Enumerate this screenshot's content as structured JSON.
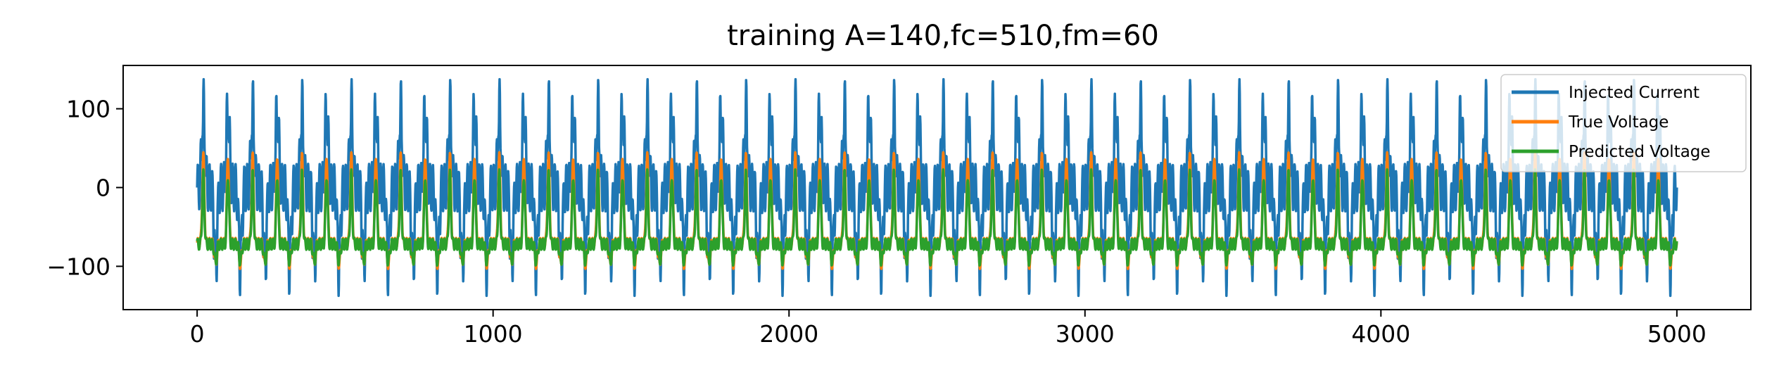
{
  "chart_data": {
    "type": "line",
    "title": "training A=140,fc=510,fm=60",
    "xlabel": "",
    "ylabel": "",
    "xlim": [
      -250,
      5250
    ],
    "ylim": [
      -155,
      155
    ],
    "x_ticks": [
      0,
      1000,
      2000,
      3000,
      4000,
      5000
    ],
    "x_tick_labels": [
      "0",
      "1000",
      "2000",
      "3000",
      "4000",
      "5000"
    ],
    "y_ticks": [
      100,
      0,
      -100
    ],
    "y_tick_labels": [
      "100",
      "0",
      "−100"
    ],
    "grid": false,
    "legend": {
      "placement": "top-right"
    },
    "x_range": [
      0,
      5000
    ],
    "n_points": 5001,
    "series": [
      {
        "name": "Injected Current",
        "color": "#1f77b4",
        "description_values": {
          "amplitude": 140,
          "min": -140,
          "max": 140,
          "baseline": 0
        }
      },
      {
        "name": "True Voltage",
        "color": "#ff7f0e",
        "description_values": {
          "min": -100,
          "max": 42,
          "baseline": -70
        }
      },
      {
        "name": "Predicted Voltage",
        "color": "#2ca02c",
        "description_values": {
          "min": -95,
          "max": 18,
          "baseline": -72
        }
      }
    ]
  }
}
